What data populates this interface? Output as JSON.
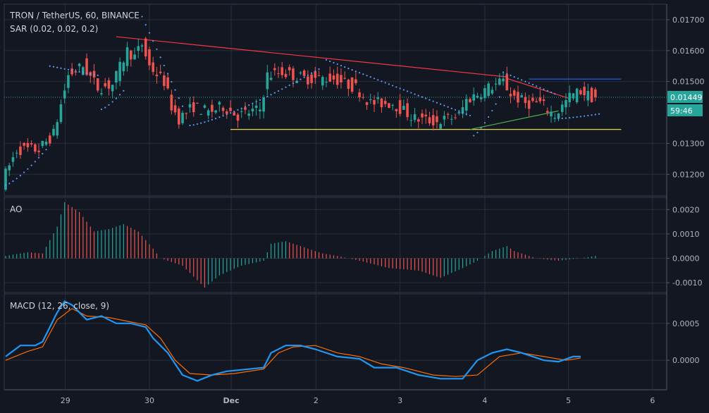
{
  "chart_data": {
    "type": "candlestick",
    "title": "TRON / TetherUS, 60, BINANCE",
    "indicator_sar": "SAR (0.02, 0.02, 0.2)",
    "indicator_ao": "AO",
    "indicator_macd": "MACD (12, 26, close, 9)",
    "x_tick_labels": [
      "29",
      "30",
      "Dec",
      "2",
      "3",
      "4",
      "5",
      "6"
    ],
    "price_axis": {
      "ticks": [
        "0.01700",
        "0.01600",
        "0.01500",
        "0.01300",
        "0.01200"
      ],
      "tick_values": [
        0.017,
        0.016,
        0.015,
        0.013,
        0.012
      ],
      "range": [
        0.0113,
        0.0175
      ]
    },
    "current_price": "0.01449",
    "countdown": "59:46",
    "hidden_tick": "0",
    "ao_axis": {
      "ticks": [
        "0.0020",
        "0.0010",
        "0.0000",
        "-0.0010"
      ],
      "tick_values": [
        0.002,
        0.001,
        0.0,
        -0.001
      ],
      "range": [
        -0.0014,
        0.0025
      ]
    },
    "macd_axis": {
      "ticks": [
        "0.0005",
        "0.0000"
      ],
      "tick_values": [
        0.0005,
        0.0
      ],
      "range": [
        -0.0004,
        0.0009
      ]
    },
    "price_path": [
      [
        0,
        0.01175
      ],
      [
        4,
        0.0128
      ],
      [
        10,
        0.0128
      ],
      [
        14,
        0.0133
      ],
      [
        18,
        0.0152
      ],
      [
        22,
        0.0155
      ],
      [
        26,
        0.0148
      ],
      [
        30,
        0.0149
      ],
      [
        34,
        0.016
      ],
      [
        36,
        0.0158
      ],
      [
        38,
        0.0162
      ],
      [
        40,
        0.0155
      ],
      [
        44,
        0.015
      ],
      [
        46,
        0.0142
      ],
      [
        48,
        0.0138
      ],
      [
        52,
        0.0142
      ],
      [
        56,
        0.014
      ],
      [
        60,
        0.0142
      ],
      [
        64,
        0.0139
      ],
      [
        70,
        0.0141
      ],
      [
        72,
        0.0152
      ],
      [
        76,
        0.0153
      ],
      [
        82,
        0.0151
      ],
      [
        90,
        0.0151
      ],
      [
        96,
        0.0148
      ],
      [
        100,
        0.0143
      ],
      [
        106,
        0.0143
      ],
      [
        112,
        0.0138
      ],
      [
        118,
        0.0137
      ],
      [
        124,
        0.0139
      ],
      [
        126,
        0.0144
      ],
      [
        132,
        0.0148
      ],
      [
        136,
        0.015
      ],
      [
        138,
        0.0146
      ],
      [
        142,
        0.0143
      ],
      [
        146,
        0.0143
      ],
      [
        150,
        0.0139
      ],
      [
        154,
        0.0145
      ],
      [
        157,
        0.0147
      ],
      [
        160,
        0.0145
      ]
    ],
    "sar_segments": [
      {
        "up": true,
        "from": [
          0,
          0.01165
        ],
        "to": [
          11,
          0.0128
        ]
      },
      {
        "up": false,
        "from": [
          12,
          0.0155
        ],
        "to": [
          25,
          0.0152
        ]
      },
      {
        "up": true,
        "from": [
          26,
          0.0141
        ],
        "to": [
          32,
          0.0147
        ]
      },
      {
        "up": false,
        "from": [
          37,
          0.0171
        ],
        "to": [
          48,
          0.0142
        ]
      },
      {
        "up": true,
        "from": [
          50,
          0.01358
        ],
        "to": [
          85,
          0.0154
        ]
      },
      {
        "up": false,
        "from": [
          87,
          0.0157
        ],
        "to": [
          126,
          0.0139
        ]
      },
      {
        "up": true,
        "from": [
          127,
          0.01325
        ],
        "to": [
          134,
          0.0145
        ]
      },
      {
        "up": false,
        "from": [
          135,
          0.0153
        ],
        "to": [
          149,
          0.0146
        ]
      },
      {
        "up": true,
        "from": [
          150,
          0.0138
        ],
        "to": [
          161,
          0.01395
        ]
      }
    ],
    "trendlines": [
      {
        "color": "#f23645",
        "from": [
          30,
          0.01645
        ],
        "to": [
          136,
          0.01515
        ]
      },
      {
        "color": "#f23645",
        "from": [
          136,
          0.0151
        ],
        "to": [
          153,
          0.01445
        ]
      },
      {
        "color": "#ffeb3b",
        "from": [
          61,
          0.01345
        ],
        "to": [
          167,
          0.01345
        ]
      },
      {
        "color": "#4caf50",
        "from": [
          126,
          0.01345
        ],
        "to": [
          150,
          0.01405
        ]
      },
      {
        "color": "#2962ff",
        "from": [
          142,
          0.01508
        ],
        "to": [
          167,
          0.01508
        ]
      }
    ],
    "ao_path": [
      [
        0,
        0.0001
      ],
      [
        6,
        0.00025
      ],
      [
        10,
        0.0002
      ],
      [
        14,
        0.0013
      ],
      [
        16,
        0.0023
      ],
      [
        20,
        0.0019
      ],
      [
        24,
        0.0011
      ],
      [
        28,
        0.0012
      ],
      [
        32,
        0.0014
      ],
      [
        36,
        0.0011
      ],
      [
        40,
        0.0004
      ],
      [
        42,
        0.0
      ],
      [
        48,
        -0.0003
      ],
      [
        54,
        -0.0012
      ],
      [
        58,
        -0.0007
      ],
      [
        64,
        -0.0003
      ],
      [
        70,
        -0.0001
      ],
      [
        72,
        0.0006
      ],
      [
        76,
        0.0007
      ],
      [
        80,
        0.0005
      ],
      [
        86,
        0.0002
      ],
      [
        90,
        0.0001
      ],
      [
        96,
        -0.0001
      ],
      [
        104,
        -0.0004
      ],
      [
        112,
        -0.0005
      ],
      [
        118,
        -0.0008
      ],
      [
        124,
        -0.0004
      ],
      [
        128,
        -0.0001
      ],
      [
        132,
        0.0003
      ],
      [
        136,
        0.0005
      ],
      [
        138,
        0.0003
      ],
      [
        144,
        0.0
      ],
      [
        150,
        -0.0001
      ],
      [
        156,
        0.0
      ],
      [
        160,
        0.0001
      ]
    ],
    "macd_path": [
      [
        0,
        5e-05
      ],
      [
        4,
        0.0002
      ],
      [
        8,
        0.0002
      ],
      [
        10,
        0.00025
      ],
      [
        14,
        0.00065
      ],
      [
        16,
        0.0008
      ],
      [
        18,
        0.00075
      ],
      [
        22,
        0.00055
      ],
      [
        26,
        0.0006
      ],
      [
        30,
        0.0005
      ],
      [
        34,
        0.0005
      ],
      [
        38,
        0.00045
      ],
      [
        40,
        0.0003
      ],
      [
        44,
        0.0001
      ],
      [
        48,
        -0.0002
      ],
      [
        52,
        -0.00028
      ],
      [
        56,
        -0.0002
      ],
      [
        60,
        -0.00015
      ],
      [
        66,
        -0.00012
      ],
      [
        70,
        -0.0001
      ],
      [
        72,
        0.0001
      ],
      [
        76,
        0.0002
      ],
      [
        80,
        0.0002
      ],
      [
        84,
        0.00015
      ],
      [
        90,
        5e-05
      ],
      [
        96,
        2e-05
      ],
      [
        100,
        -0.0001
      ],
      [
        106,
        -0.0001
      ],
      [
        112,
        -0.0002
      ],
      [
        118,
        -0.00025
      ],
      [
        124,
        -0.00025
      ],
      [
        128,
        0.0
      ],
      [
        132,
        0.0001
      ],
      [
        136,
        0.00015
      ],
      [
        140,
        0.0001
      ],
      [
        146,
        0.0
      ],
      [
        150,
        -2e-05
      ],
      [
        154,
        5e-05
      ],
      [
        156,
        5e-05
      ]
    ],
    "signal_path": [
      [
        0,
        0.0
      ],
      [
        6,
        0.00012
      ],
      [
        10,
        0.00018
      ],
      [
        14,
        0.00055
      ],
      [
        18,
        0.0007
      ],
      [
        22,
        0.0006
      ],
      [
        28,
        0.00058
      ],
      [
        34,
        0.00052
      ],
      [
        38,
        0.00048
      ],
      [
        42,
        0.0003
      ],
      [
        46,
        0.0
      ],
      [
        50,
        -0.00018
      ],
      [
        56,
        -0.0002
      ],
      [
        62,
        -0.00018
      ],
      [
        70,
        -0.00012
      ],
      [
        74,
        0.0001
      ],
      [
        78,
        0.00018
      ],
      [
        84,
        0.0002
      ],
      [
        90,
        0.0001
      ],
      [
        96,
        5e-05
      ],
      [
        102,
        -5e-05
      ],
      [
        108,
        -0.0001
      ],
      [
        116,
        -0.0002
      ],
      [
        122,
        -0.00022
      ],
      [
        128,
        -0.0002
      ],
      [
        134,
        5e-05
      ],
      [
        140,
        0.0001
      ],
      [
        146,
        5e-05
      ],
      [
        152,
        0.0
      ],
      [
        156,
        3e-05
      ]
    ],
    "colors": {
      "background": "#131722",
      "up": "#26a69a",
      "down": "#ef5350",
      "grid": "#2a2e39",
      "macd": "#2196f3",
      "signal": "#ff6d00",
      "price_label": "#26a69a"
    }
  }
}
